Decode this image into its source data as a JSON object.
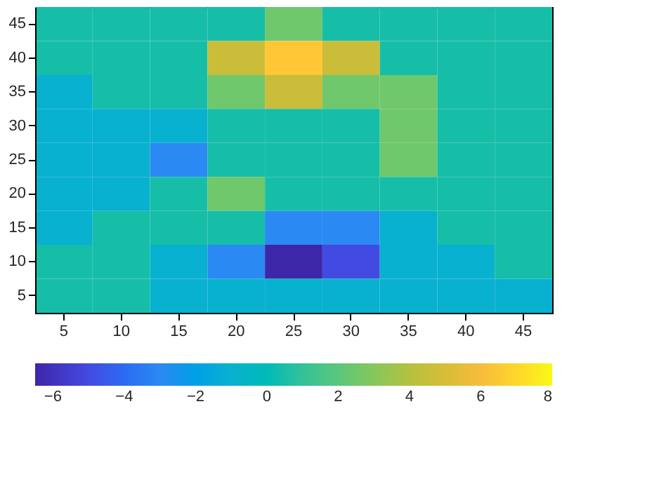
{
  "chart_data": {
    "type": "heatmap",
    "categories": [
      "5",
      "10",
      "15",
      "20",
      "25",
      "30",
      "35",
      "40",
      "45"
    ],
    "y_categories": [
      "45",
      "40",
      "35",
      "30",
      "25",
      "20",
      "15",
      "10",
      "5"
    ],
    "cells": [
      [
        0.5,
        0.5,
        0.5,
        0.5,
        2.5,
        0.5,
        0.5,
        0.5,
        0.5
      ],
      [
        0.5,
        0.5,
        0.5,
        4.5,
        6.5,
        4.5,
        0.5,
        0.5,
        0.5
      ],
      [
        -1,
        0.5,
        0.5,
        2.5,
        4.5,
        2.5,
        2.5,
        0.5,
        0.5
      ],
      [
        -1,
        -1,
        -1,
        0.5,
        0.5,
        0.5,
        2.5,
        0.5,
        0.5
      ],
      [
        -1,
        -1,
        -3,
        0.5,
        0.5,
        0.5,
        2.5,
        0.5,
        0.5
      ],
      [
        -1,
        -1,
        0.5,
        2.5,
        0.5,
        0.5,
        0.5,
        0.5,
        0.5
      ],
      [
        -1,
        0.5,
        0.5,
        0.5,
        -3,
        -3,
        -1,
        0.5,
        0.5
      ],
      [
        0.5,
        0.5,
        -1,
        -3,
        -6.5,
        -5,
        -1,
        -1,
        0.5
      ],
      [
        0.5,
        0.5,
        -1,
        -1,
        -1,
        -1,
        -1,
        -1,
        -1
      ]
    ],
    "clim": [
      -6.5,
      8
    ],
    "cticks": [
      -6,
      -4,
      -2,
      0,
      2,
      4,
      6,
      8
    ]
  }
}
